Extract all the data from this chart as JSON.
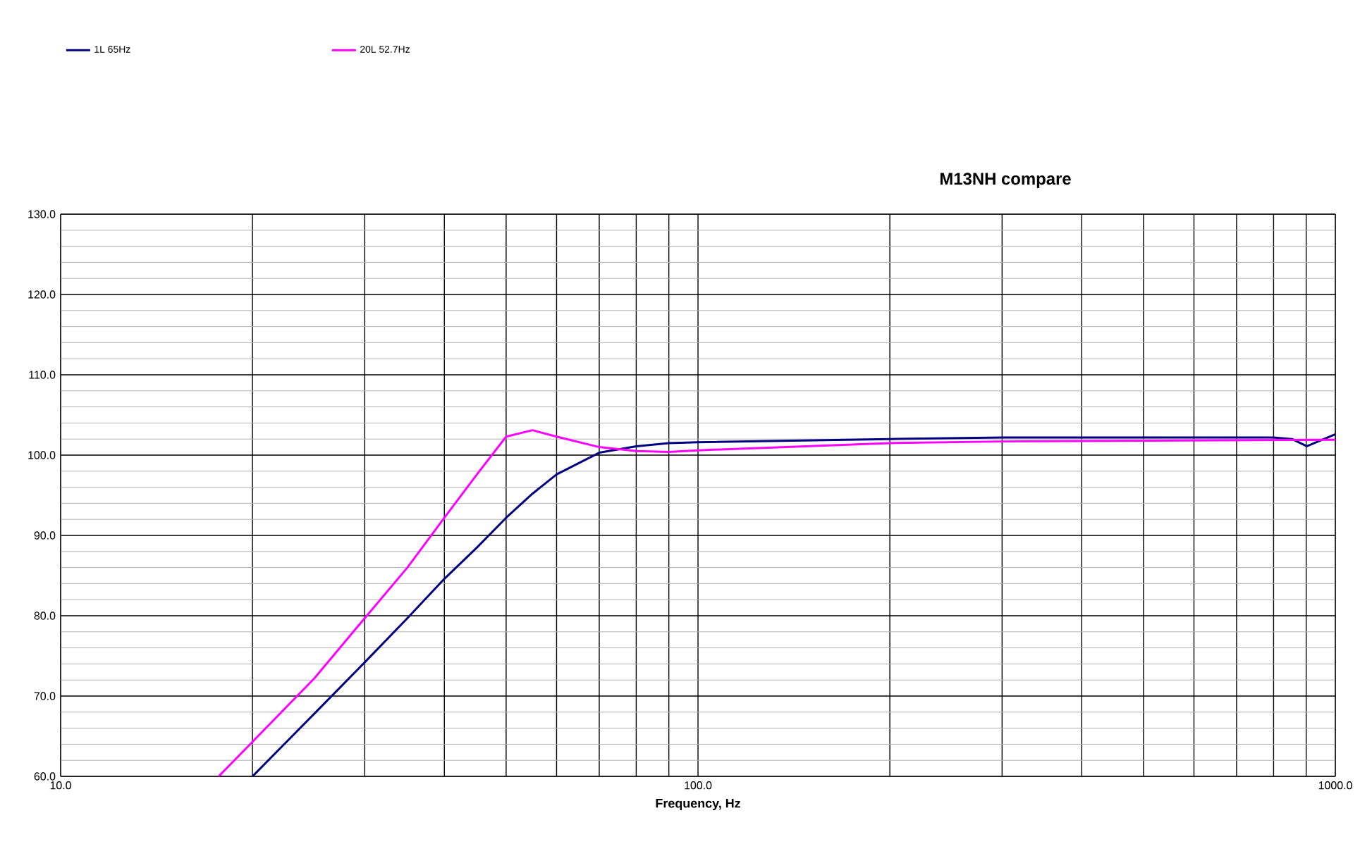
{
  "chart_data": {
    "type": "line",
    "title": "M13NH compare",
    "xlabel": "Frequency,  Hz",
    "log": "x",
    "grid": true,
    "legend": "top left",
    "xlim": [
      10,
      1000
    ],
    "xticks": [
      {
        "value": 10,
        "label": "10.0"
      },
      {
        "value": 100,
        "label": "100.0"
      },
      {
        "value": 1000,
        "label": "1000.0"
      }
    ],
    "ylim": [
      60,
      130
    ],
    "yticks": [
      {
        "value": 60,
        "label": "60.0"
      },
      {
        "value": 70,
        "label": "70.0"
      },
      {
        "value": 80,
        "label": "80.0"
      },
      {
        "value": 90,
        "label": "90.0"
      },
      {
        "value": 100,
        "label": "100.0"
      },
      {
        "value": 110,
        "label": "110.0"
      },
      {
        "value": 120,
        "label": "120.0"
      },
      {
        "value": 130,
        "label": "130.0"
      }
    ],
    "series": [
      {
        "name": "1L 65Hz",
        "color": "#000080",
        "x": [
          20,
          25,
          30,
          35,
          40,
          45,
          50,
          55,
          60,
          70,
          80,
          90,
          100,
          200,
          300,
          500,
          800,
          855,
          902,
          1000
        ],
        "values": [
          60,
          67.8,
          74.2,
          79.7,
          84.6,
          88.5,
          92.2,
          95.2,
          97.6,
          100.3,
          101.1,
          101.5,
          101.6,
          102.0,
          102.2,
          102.2,
          102.2,
          102.0,
          101.1,
          102.6
        ]
      },
      {
        "name": "20L 52.7Hz",
        "color": "#ff00ff",
        "x": [
          17.7,
          20,
          25,
          30,
          35,
          40,
          45,
          50,
          55,
          60,
          70,
          80,
          90,
          100,
          200,
          300,
          500,
          1000
        ],
        "values": [
          60,
          64.3,
          72.2,
          79.7,
          86,
          92.2,
          97.6,
          102.3,
          103.1,
          102.3,
          101.0,
          100.5,
          100.4,
          100.6,
          101.5,
          101.7,
          101.8,
          101.9
        ]
      }
    ]
  }
}
